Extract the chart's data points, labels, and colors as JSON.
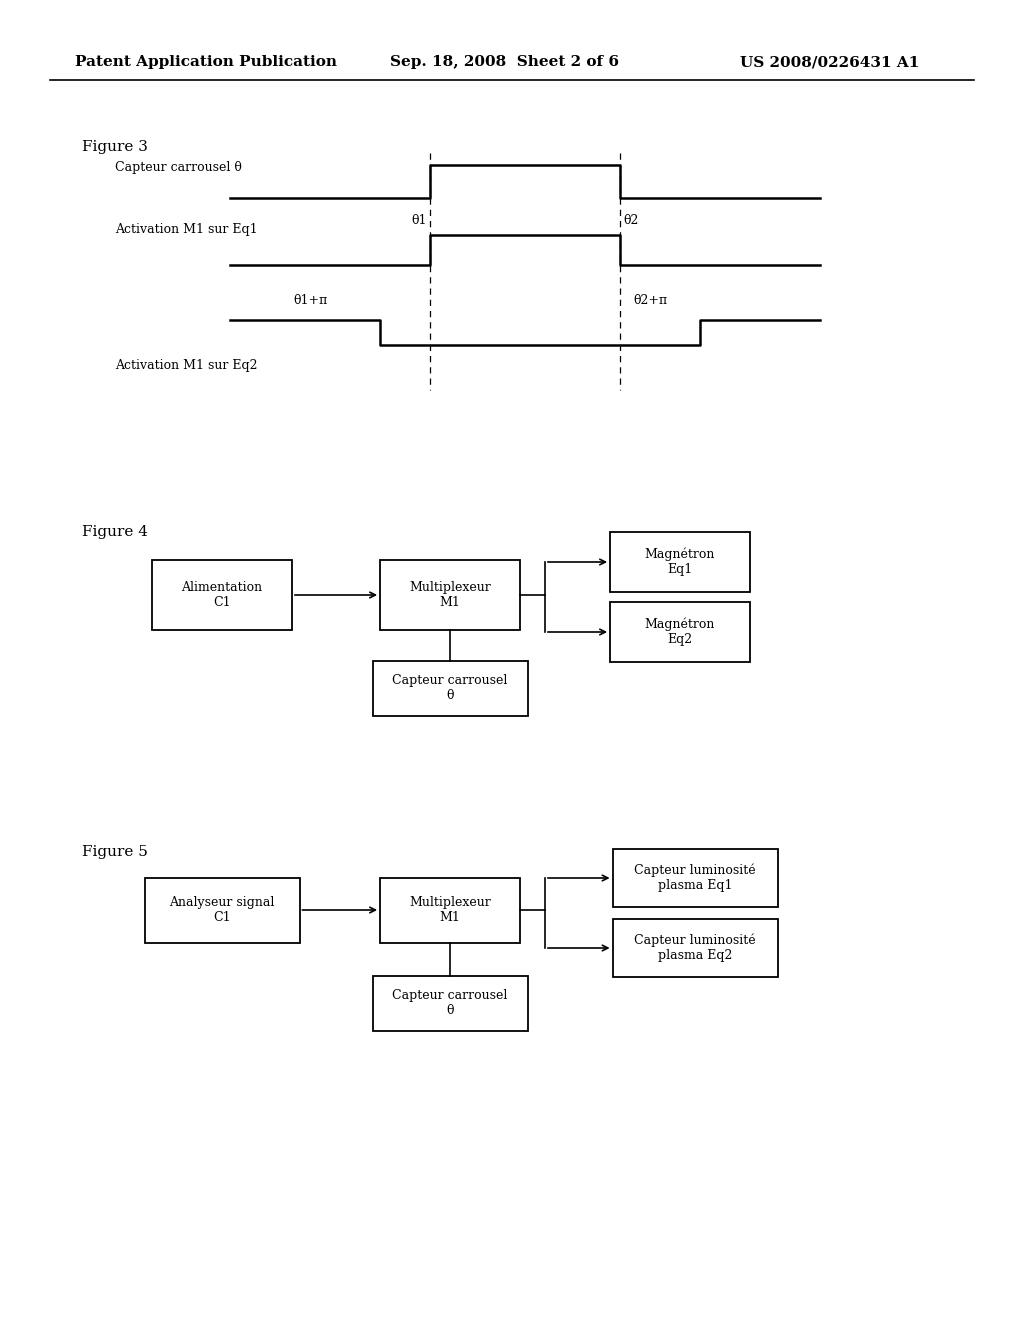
{
  "bg_color": "#ffffff",
  "header_left": "Patent Application Publication",
  "header_center": "Sep. 18, 2008  Sheet 2 of 6",
  "header_right": "US 2008/0226431 A1",
  "fig3_label": "Figure 3",
  "fig3_signal1_label": "Capteur carrousel θ",
  "fig3_signal2_label": "Activation M1 sur Eq1",
  "fig3_signal3_label": "Activation M1 sur Eq2",
  "fig3_theta1_label": "θ1",
  "fig3_theta2_label": "θ2",
  "fig3_theta1pi_label": "θ1+π",
  "fig3_theta2pi_label": "θ2+π",
  "fig4_label": "Figure 4",
  "fig4_box1": "Alimentation\nC1",
  "fig4_box2": "Multiplexeur\nM1",
  "fig4_box3": "Magnétron\nEq1",
  "fig4_box4": "Magnétron\nEq2",
  "fig4_box5": "Capteur carrousel\nθ",
  "fig5_label": "Figure 5",
  "fig5_box1": "Analyseur signal\nC1",
  "fig5_box2": "Multiplexeur\nM1",
  "fig5_box3": "Capteur luminosité\nplasma Eq1",
  "fig5_box4": "Capteur luminosité\nplasma Eq2",
  "fig5_box5": "Capteur carrousel\nθ"
}
